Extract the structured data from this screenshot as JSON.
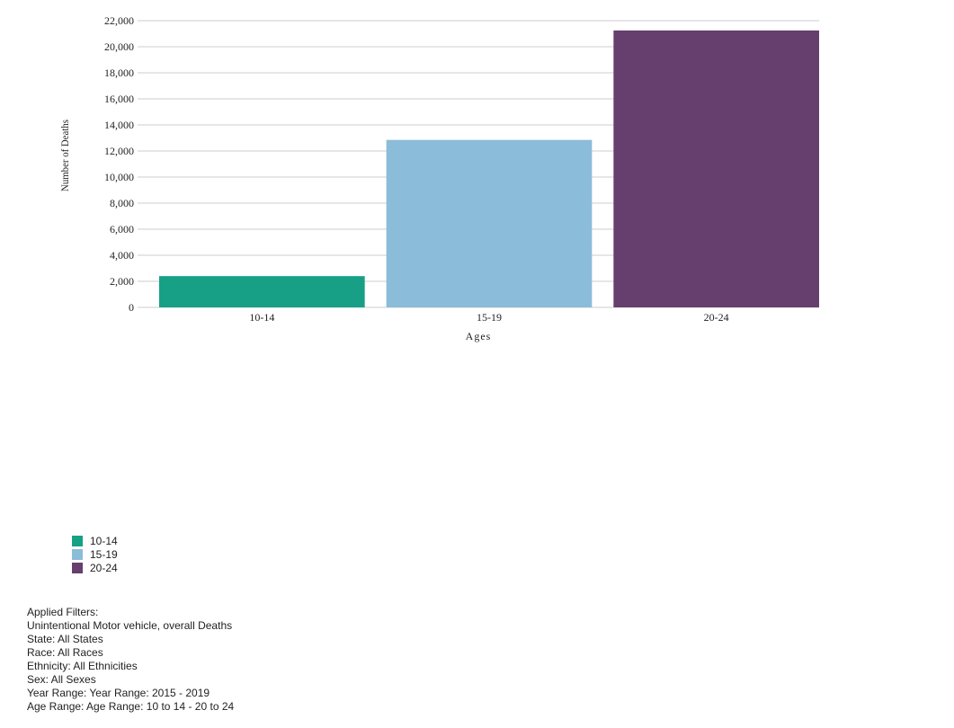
{
  "chart_data": {
    "type": "bar",
    "categories": [
      "10-14",
      "15-19",
      "20-24"
    ],
    "values": [
      2400,
      12850,
      21250
    ],
    "colors": [
      "#17a085",
      "#8bbcd9",
      "#663f6f"
    ],
    "xlabel": "Ages",
    "ylabel": "Number of Deaths",
    "ylim": [
      0,
      22000
    ],
    "yticks": [
      0,
      2000,
      4000,
      6000,
      8000,
      10000,
      12000,
      14000,
      16000,
      18000,
      20000,
      22000
    ],
    "grid": true,
    "legend_position": "bottom-left"
  },
  "legend": {
    "items": [
      {
        "label": "10-14",
        "color": "#17a085"
      },
      {
        "label": "15-19",
        "color": "#8bbcd9"
      },
      {
        "label": "20-24",
        "color": "#663f6f"
      }
    ]
  },
  "filters": {
    "heading": "Applied Filters:",
    "lines": [
      "Unintentional Motor vehicle, overall Deaths",
      "State: All States",
      "Race: All Races",
      "Ethnicity: All Ethnicities",
      "Sex: All Sexes",
      "Year Range: Year Range: 2015 - 2019",
      "Age Range: Age Range: 10 to 14 - 20 to 24"
    ]
  }
}
